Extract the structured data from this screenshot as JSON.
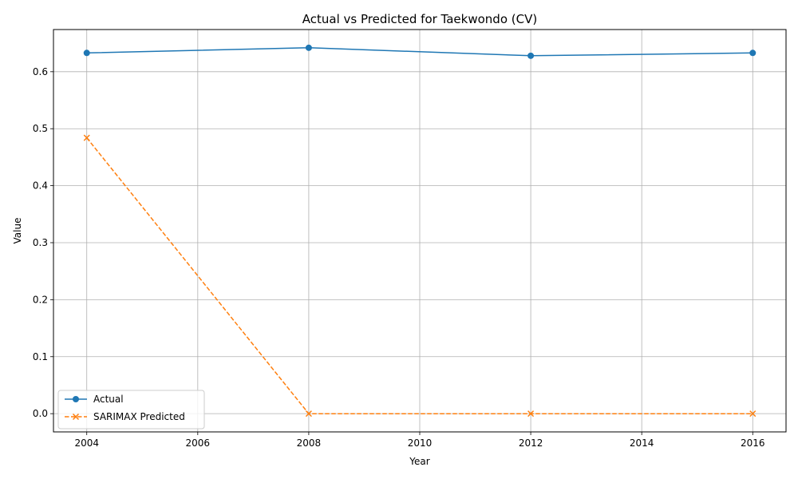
{
  "chart_data": {
    "type": "line",
    "title": "Actual vs Predicted for Taekwondo (CV)",
    "xlabel": "Year",
    "ylabel": "Value",
    "x": [
      2004,
      2008,
      2012,
      2016
    ],
    "xlim": [
      2003.4,
      2016.6
    ],
    "ylim": [
      -0.032,
      0.674
    ],
    "xticks": [
      2004,
      2006,
      2008,
      2010,
      2012,
      2014,
      2016
    ],
    "yticks": [
      0.0,
      0.1,
      0.2,
      0.3,
      0.4,
      0.5,
      0.6
    ],
    "ytick_labels": [
      "0.0",
      "0.1",
      "0.2",
      "0.3",
      "0.4",
      "0.5",
      "0.6"
    ],
    "grid": true,
    "legend_position": "lower-left",
    "series": [
      {
        "name": "Actual",
        "values": [
          0.633,
          0.642,
          0.628,
          0.633
        ],
        "color": "#1f77b4",
        "marker": "circle",
        "line_style": "solid"
      },
      {
        "name": "SARIMAX Predicted",
        "values": [
          0.484,
          0.0,
          0.0,
          0.0
        ],
        "color": "#ff7f0e",
        "marker": "x",
        "line_style": "dashed"
      }
    ]
  }
}
